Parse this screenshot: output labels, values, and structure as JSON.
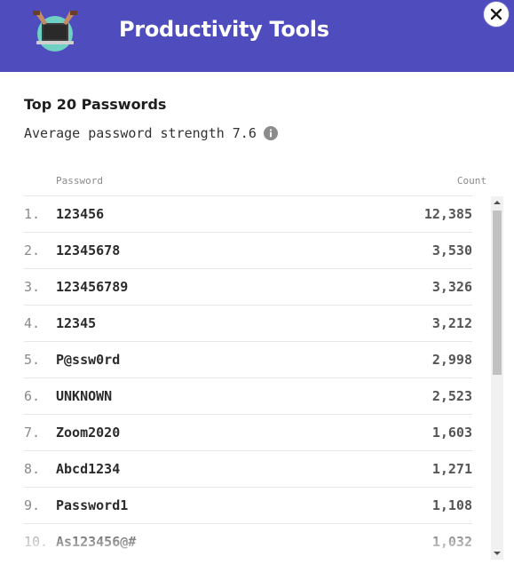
{
  "header": {
    "title": "Productivity Tools",
    "logo_icon": "laptop-hands-icon",
    "background": "#4f4dbe"
  },
  "close": {
    "icon": "close-icon"
  },
  "section": {
    "title": "Top 20 Passwords",
    "average_label": "Average password strength",
    "average_value": "7.6",
    "info_icon": "info-icon"
  },
  "table": {
    "columns": {
      "password": "Password",
      "count": "Count"
    },
    "rows": [
      {
        "rank": "1.",
        "password": "123456",
        "count": "12,385"
      },
      {
        "rank": "2.",
        "password": "12345678",
        "count": "3,530"
      },
      {
        "rank": "3.",
        "password": "123456789",
        "count": "3,326"
      },
      {
        "rank": "4.",
        "password": "12345",
        "count": "3,212"
      },
      {
        "rank": "5.",
        "password": "P@ssw0rd",
        "count": "2,998"
      },
      {
        "rank": "6.",
        "password": "UNKNOWN",
        "count": "2,523"
      },
      {
        "rank": "7.",
        "password": "Zoom2020",
        "count": "1,603"
      },
      {
        "rank": "8.",
        "password": "Abcd1234",
        "count": "1,271"
      },
      {
        "rank": "9.",
        "password": "Password1",
        "count": "1,108"
      },
      {
        "rank": "10.",
        "password": "As123456@#",
        "count": "1,032"
      }
    ]
  }
}
